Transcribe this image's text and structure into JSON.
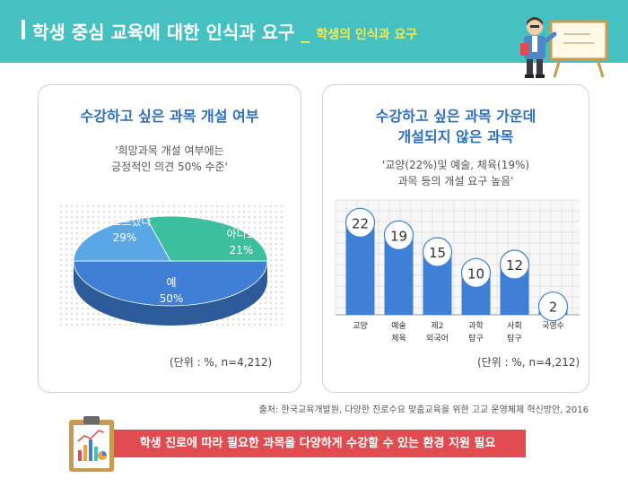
{
  "header": {
    "title": "학생 중심 교육에 대한 인식과 요구",
    "separator": "_",
    "subtitle": "학생의 인식과 요구"
  },
  "left_panel": {
    "title": "수강하고 싶은 과목 개설 여부",
    "subtitle_line1": "'희망과목 개설 여부에는",
    "subtitle_line2": "긍정적인 의견 50% 수준'",
    "unit": "(단위 : %, n=4,212)"
  },
  "right_panel": {
    "title_line1": "수강하고 싶은 과목 가운데",
    "title_line2": "개설되지 않은 과목",
    "subtitle_line1": "'교양(22%)및 예술, 체육(19%)",
    "subtitle_line2": "과목 등의 개설 요구 높음'",
    "unit": "(단위 : %, n=4,212)"
  },
  "source": "출처: 한국교육개발원, 다양한 진로수요 맞춤교육을 위한 고교 운영체제 혁신방안, 2016",
  "banner": "학생 진로에 따라 필요한 과목을 다양하게 수강할 수 있는 환경 지원 필요",
  "colors": {
    "header_bg": "#46c1c2",
    "accent_yellow": "#f2e94e",
    "title_blue": "#2e6fbf",
    "banner_red": "#e04c4f",
    "pie_yes": "#3f7fd6",
    "pie_no": "#5aa7e6",
    "pie_dontknow": "#3cbf9f",
    "bar_fill": "#3f7fd6"
  },
  "icons": [
    "teacher-illustration-icon",
    "clipboard-chart-icon"
  ],
  "chart_data": [
    {
      "type": "pie",
      "slices": [
        {
          "label": "예",
          "value": 50,
          "display": "50%"
        },
        {
          "label": "아니요",
          "value": 21,
          "display": "21%"
        },
        {
          "label": "잘 모르겠다",
          "value": 29,
          "display": "29%"
        }
      ],
      "unit": "(단위 : %, n=4,212)"
    },
    {
      "type": "bar",
      "categories": [
        "교양",
        "예술 체육",
        "제2 외국어",
        "과학 탐구",
        "사회 탐구",
        "국영수"
      ],
      "category_lines": [
        [
          "교양"
        ],
        [
          "예술",
          "체육"
        ],
        [
          "제2",
          "외국어"
        ],
        [
          "과학",
          "탐구"
        ],
        [
          "사회",
          "탐구"
        ],
        [
          "국영수"
        ]
      ],
      "values": [
        22,
        19,
        15,
        10,
        12,
        2
      ],
      "ylim": [
        0,
        24
      ],
      "grid": true,
      "unit": "(단위 : %, n=4,212)"
    }
  ]
}
